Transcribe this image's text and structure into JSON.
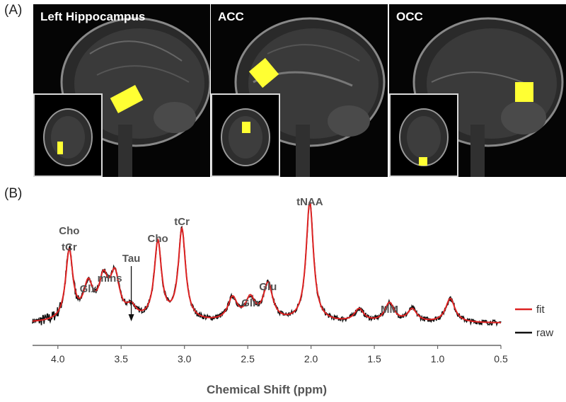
{
  "panel_a_label": "(A)",
  "panel_b_label": "(B)",
  "mri_panels": [
    {
      "title": "Left Hippocampus"
    },
    {
      "title": "ACC"
    },
    {
      "title": "OCC"
    }
  ],
  "colors": {
    "fit": "#dd2222",
    "raw": "#111111",
    "roi": "#ffff33",
    "label": "#555555"
  },
  "chart_data": {
    "type": "line",
    "title": "",
    "xlabel": "Chemical Shift (ppm)",
    "ylabel": "",
    "xlim": [
      4.2,
      0.5
    ],
    "x_reversed": true,
    "x_ticks": [
      "4.0",
      "3.5",
      "3.0",
      "2.5",
      "2.0",
      "1.5",
      "1.0",
      "0.5"
    ],
    "legend": [
      "fit",
      "raw"
    ],
    "legend_position": "right",
    "series": [
      {
        "name": "fit",
        "color": "#dd2222"
      },
      {
        "name": "raw",
        "color": "#111111"
      }
    ],
    "peaks_relative_height": [
      {
        "ppm": 3.91,
        "height": 0.55
      },
      {
        "ppm": 3.76,
        "height": 0.27
      },
      {
        "ppm": 3.64,
        "height": 0.3
      },
      {
        "ppm": 3.55,
        "height": 0.34
      },
      {
        "ppm": 3.42,
        "height": 0.09
      },
      {
        "ppm": 3.21,
        "height": 0.62
      },
      {
        "ppm": 3.02,
        "height": 0.72
      },
      {
        "ppm": 2.62,
        "height": 0.18
      },
      {
        "ppm": 2.48,
        "height": 0.17
      },
      {
        "ppm": 2.34,
        "height": 0.29
      },
      {
        "ppm": 2.01,
        "height": 0.95
      },
      {
        "ppm": 1.62,
        "height": 0.1
      },
      {
        "ppm": 1.38,
        "height": 0.15
      },
      {
        "ppm": 1.2,
        "height": 0.1
      },
      {
        "ppm": 0.9,
        "height": 0.19
      }
    ],
    "annotations": [
      {
        "text": "Cho",
        "ppm": 3.91
      },
      {
        "text": "tCr",
        "ppm": 3.91
      },
      {
        "text": "Glx",
        "ppm": 3.76
      },
      {
        "text": "mIns",
        "ppm": 3.59
      },
      {
        "text": "Tau",
        "ppm": 3.42
      },
      {
        "text": "Cho",
        "ppm": 3.21
      },
      {
        "text": "tCr",
        "ppm": 3.02
      },
      {
        "text": "Gln",
        "ppm": 2.48
      },
      {
        "text": "Glu",
        "ppm": 2.34
      },
      {
        "text": "tNAA",
        "ppm": 2.01
      },
      {
        "text": "MM",
        "ppm": 1.38
      }
    ]
  }
}
